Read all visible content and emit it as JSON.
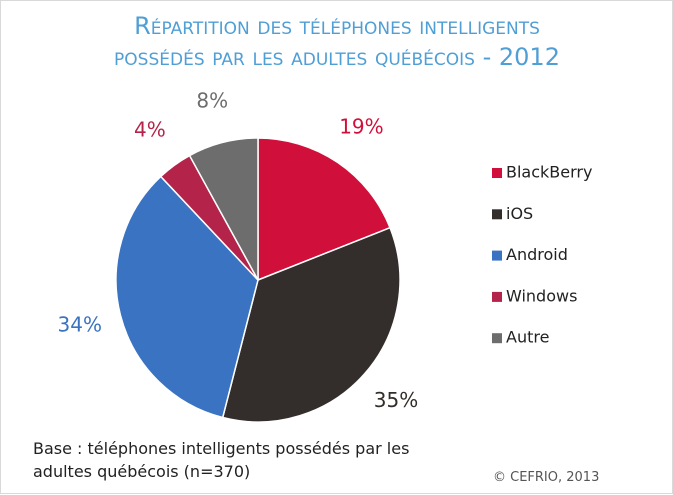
{
  "chart_data": {
    "type": "pie",
    "title": "Répartition des téléphones intelligents possédés par les adultes québécois - 2012",
    "categories": [
      "BlackBerry",
      "iOS",
      "Android",
      "Windows",
      "Autre"
    ],
    "values": [
      19,
      35,
      34,
      4,
      8
    ],
    "value_labels": [
      "19%",
      "35%",
      "34%",
      "4%",
      "8%"
    ],
    "colors": [
      "#d0103a",
      "#332e2b",
      "#3a73c1",
      "#b4244a",
      "#6d6d6d"
    ],
    "legend": "right",
    "note": "Base : téléphones intelligents possédés par les adultes québécois (n=370)",
    "source": "© CEFRIO, 2013"
  }
}
